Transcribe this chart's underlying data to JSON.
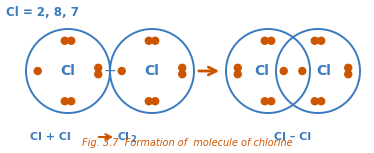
{
  "bg_color": "#ffffff",
  "border_color": "#3a7abf",
  "dot_color": "#cc5500",
  "text_color": "#3a7abf",
  "arrow_color": "#cc5500",
  "fig_text_color": "#cc5500",
  "title_text": "Cl = 2, 8, 7",
  "fig_caption": "Fig. 3.7  Formation of  molecule of chlorine",
  "fig_w": 3.74,
  "fig_h": 1.53,
  "dpi": 100
}
